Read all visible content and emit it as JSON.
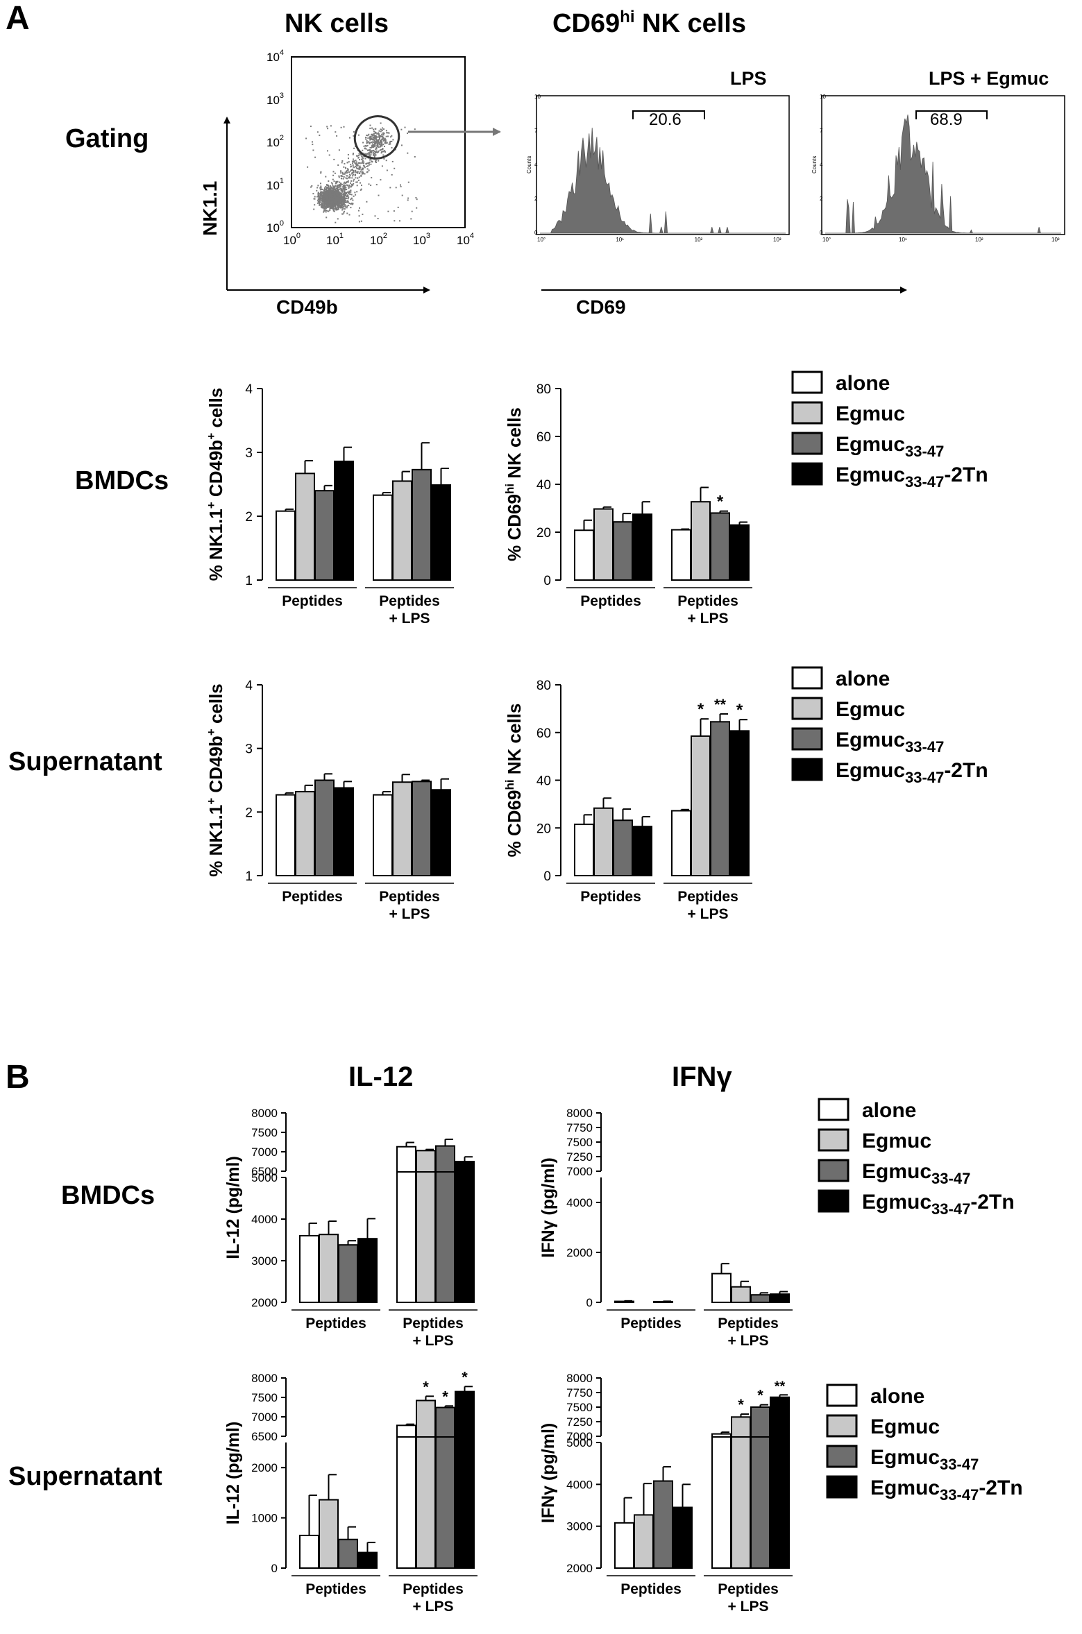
{
  "panel_a": {
    "letter": "A",
    "headers": {
      "nk": "NK cells",
      "cd69_main": "CD69",
      "cd69_sup": "hi",
      "cd69_rest": " NK cells"
    },
    "row_gating": "Gating",
    "row_bmdc": "BMDCs",
    "row_sup": "Supernatant",
    "scatter": {
      "ylabel": "NK1.1",
      "xlabel": "CD49b",
      "y_ticks": [
        "10",
        "10",
        "10",
        "10",
        "10"
      ],
      "y_exps": [
        "0",
        "1",
        "2",
        "3",
        "4"
      ],
      "x_ticks": [
        "10",
        "10",
        "10",
        "10",
        "10"
      ],
      "x_exps": [
        "0",
        "1",
        "2",
        "3",
        "4"
      ]
    },
    "hist_lps": {
      "title": "LPS",
      "gate_value": "20.6",
      "ylabel": "Counts"
    },
    "hist_egmuc": {
      "title": "LPS + Egmuc",
      "gate_value": "68.9",
      "ylabel": "Counts"
    },
    "hist_xlabel": "CD69",
    "hist_x_ticks": [
      "10°",
      "10¹",
      "10²",
      "10³"
    ],
    "hist_y_ticks": [
      "0",
      "2",
      "4",
      "7",
      "10"
    ]
  },
  "panel_b": {
    "letter": "B",
    "title_il12": "IL-12",
    "title_ifn": "IFNγ",
    "row_bmdc": "BMDCs",
    "row_sup": "Supernatant"
  },
  "legend": {
    "items": [
      {
        "label": "alone",
        "sub": "",
        "suffix": ""
      },
      {
        "label": "Egmuc",
        "sub": "",
        "suffix": ""
      },
      {
        "label": "Egmuc",
        "sub": "33-47",
        "suffix": ""
      },
      {
        "label": "Egmuc",
        "sub": "33-47",
        "suffix": "-2Tn"
      }
    ]
  },
  "colors": {
    "alone": "#ffffff",
    "egmuc": "#c8c8c8",
    "egmuc_33_47": "#6e6e6e",
    "egmuc_2tn": "#000000",
    "flow": "#7a7a7a"
  },
  "chart_data": [
    {
      "id": "a_bmdc_nk",
      "type": "bar",
      "ylabel_parts": [
        "% NK1.1",
        "+",
        " CD49b",
        "+",
        " cells"
      ],
      "ylim": [
        1,
        4
      ],
      "yticks": [
        "1",
        "2",
        "3",
        "4"
      ],
      "groups": [
        "Peptides",
        "Peptides\n+ LPS"
      ],
      "series": [
        {
          "name": "alone",
          "values": [
            2.08,
            2.33
          ],
          "err": [
            0.03,
            0.04
          ],
          "sig": [
            "",
            ""
          ]
        },
        {
          "name": "Egmuc",
          "values": [
            2.67,
            2.55
          ],
          "err": [
            0.2,
            0.15
          ],
          "sig": [
            "",
            ""
          ]
        },
        {
          "name": "Egmuc33-47",
          "values": [
            2.4,
            2.73
          ],
          "err": [
            0.08,
            0.42
          ],
          "sig": [
            "",
            ""
          ]
        },
        {
          "name": "Egmuc33-47-2Tn",
          "values": [
            2.86,
            2.49
          ],
          "err": [
            0.22,
            0.26
          ],
          "sig": [
            "",
            ""
          ]
        }
      ]
    },
    {
      "id": "a_bmdc_cd69",
      "type": "bar",
      "ylabel_parts": [
        "% CD69",
        "hi",
        " NK cells"
      ],
      "ylim": [
        0,
        80
      ],
      "yticks": [
        "0",
        "20",
        "40",
        "60",
        "80"
      ],
      "groups": [
        "Peptides",
        "Peptides\n+ LPS"
      ],
      "series": [
        {
          "name": "alone",
          "values": [
            20.8,
            21
          ],
          "err": [
            4.2,
            0.3
          ],
          "sig": [
            "",
            ""
          ]
        },
        {
          "name": "Egmuc",
          "values": [
            29.7,
            32.7
          ],
          "err": [
            0.8,
            6
          ],
          "sig": [
            "",
            ""
          ]
        },
        {
          "name": "Egmuc33-47",
          "values": [
            24.3,
            28
          ],
          "err": [
            3.5,
            0.8
          ],
          "sig": [
            "",
            "*"
          ]
        },
        {
          "name": "Egmuc33-47-2Tn",
          "values": [
            27.5,
            23
          ],
          "err": [
            5.2,
            1.2
          ],
          "sig": [
            "",
            ""
          ]
        }
      ]
    },
    {
      "id": "a_sup_nk",
      "type": "bar",
      "ylabel_parts": [
        "% NK1.1",
        "+",
        " CD49b",
        "+",
        " cells"
      ],
      "ylim": [
        1,
        4
      ],
      "yticks": [
        "1",
        "2",
        "3",
        "4"
      ],
      "groups": [
        "Peptides",
        "Peptides\n+ LPS"
      ],
      "series": [
        {
          "name": "alone",
          "values": [
            2.27,
            2.27
          ],
          "err": [
            0.03,
            0.05
          ],
          "sig": [
            "",
            ""
          ]
        },
        {
          "name": "Egmuc",
          "values": [
            2.32,
            2.47
          ],
          "err": [
            0.1,
            0.12
          ],
          "sig": [
            "",
            ""
          ]
        },
        {
          "name": "Egmuc33-47",
          "values": [
            2.5,
            2.48
          ],
          "err": [
            0.1,
            0.02
          ],
          "sig": [
            "",
            ""
          ]
        },
        {
          "name": "Egmuc33-47-2Tn",
          "values": [
            2.38,
            2.35
          ],
          "err": [
            0.1,
            0.17
          ],
          "sig": [
            "",
            ""
          ]
        }
      ]
    },
    {
      "id": "a_sup_cd69",
      "type": "bar",
      "ylabel_parts": [
        "% CD69",
        "hi",
        " NK cells"
      ],
      "ylim": [
        0,
        80
      ],
      "yticks": [
        "0",
        "20",
        "40",
        "60",
        "80"
      ],
      "groups": [
        "Peptides",
        "Peptides\n+ LPS"
      ],
      "series": [
        {
          "name": "alone",
          "values": [
            21.5,
            27.2
          ],
          "err": [
            4,
            0.5
          ],
          "sig": [
            "",
            ""
          ]
        },
        {
          "name": "Egmuc",
          "values": [
            28.3,
            58.5
          ],
          "err": [
            4.2,
            7.2
          ],
          "sig": [
            "",
            "*"
          ]
        },
        {
          "name": "Egmuc33-47",
          "values": [
            23.2,
            64.5
          ],
          "err": [
            4.7,
            3.3
          ],
          "sig": [
            "",
            "**"
          ]
        },
        {
          "name": "Egmuc33-47-2Tn",
          "values": [
            20.6,
            60.7
          ],
          "err": [
            4.1,
            4.7
          ],
          "sig": [
            "",
            "*"
          ]
        }
      ]
    },
    {
      "id": "b_bmdc_il12",
      "type": "bar",
      "broken": true,
      "ylabel": "IL-12 (pg/ml)",
      "lower_ylim": [
        2000,
        5000
      ],
      "lower_ticks": [
        "2000",
        "3000",
        "4000",
        "5000"
      ],
      "upper_ylim": [
        6500,
        8000
      ],
      "upper_ticks": [
        "6500",
        "7000",
        "7500",
        "8000"
      ],
      "groups": [
        "Peptides",
        "Peptides\n+ LPS"
      ],
      "series": [
        {
          "name": "alone",
          "values": [
            3600,
            7130
          ],
          "err": [
            300,
            110
          ],
          "sig": [
            "",
            ""
          ]
        },
        {
          "name": "Egmuc",
          "values": [
            3630,
            7030
          ],
          "err": [
            320,
            30
          ],
          "sig": [
            "",
            ""
          ]
        },
        {
          "name": "Egmuc33-47",
          "values": [
            3380,
            7150
          ],
          "err": [
            100,
            170
          ],
          "sig": [
            "",
            ""
          ]
        },
        {
          "name": "Egmuc33-47-2Tn",
          "values": [
            3530,
            6750
          ],
          "err": [
            480,
            120
          ],
          "sig": [
            "",
            ""
          ]
        }
      ]
    },
    {
      "id": "b_bmdc_ifn",
      "type": "bar",
      "broken": true,
      "ylabel": "IFNγ (pg/ml)",
      "lower_ylim": [
        0,
        5000
      ],
      "lower_ticks": [
        "0",
        "2000",
        "4000"
      ],
      "upper_ylim": [
        7000,
        8000
      ],
      "upper_ticks": [
        "7000",
        "7250",
        "7500",
        "7750",
        "8000"
      ],
      "groups": [
        "Peptides",
        "Peptides\n+ LPS"
      ],
      "series": [
        {
          "name": "alone",
          "values": [
            40,
            1150
          ],
          "err": [
            20,
            400
          ],
          "sig": [
            "",
            ""
          ]
        },
        {
          "name": "Egmuc",
          "values": [
            0,
            620
          ],
          "err": [
            0,
            220
          ],
          "sig": [
            "",
            ""
          ]
        },
        {
          "name": "Egmuc33-47",
          "values": [
            30,
            300
          ],
          "err": [
            15,
            80
          ],
          "sig": [
            "",
            ""
          ]
        },
        {
          "name": "Egmuc33-47-2Tn",
          "values": [
            0,
            330
          ],
          "err": [
            0,
            100
          ],
          "sig": [
            "",
            ""
          ]
        }
      ]
    },
    {
      "id": "b_sup_il12",
      "type": "bar",
      "broken": true,
      "ylabel": "IL-12 (pg/ml)",
      "lower_ylim": [
        0,
        2500
      ],
      "lower_ticks": [
        "0",
        "1000",
        "2000"
      ],
      "upper_ylim": [
        6500,
        8000
      ],
      "upper_ticks": [
        "6500",
        "7000",
        "7500",
        "8000"
      ],
      "groups": [
        "Peptides",
        "Peptides\n+ LPS"
      ],
      "series": [
        {
          "name": "alone",
          "values": [
            650,
            6780
          ],
          "err": [
            800,
            30
          ],
          "sig": [
            "",
            ""
          ]
        },
        {
          "name": "Egmuc",
          "values": [
            1360,
            7420
          ],
          "err": [
            500,
            110
          ],
          "sig": [
            "",
            "*"
          ]
        },
        {
          "name": "Egmuc33-47",
          "values": [
            570,
            7240
          ],
          "err": [
            250,
            40
          ],
          "sig": [
            "",
            "*"
          ]
        },
        {
          "name": "Egmuc33-47-2Tn",
          "values": [
            310,
            7650
          ],
          "err": [
            200,
            130
          ],
          "sig": [
            "",
            "*"
          ]
        }
      ]
    },
    {
      "id": "b_sup_ifn",
      "type": "bar",
      "broken": true,
      "ylabel": "IFNγ (pg/ml)",
      "lower_ylim": [
        2000,
        5000
      ],
      "lower_ticks": [
        "2000",
        "3000",
        "4000",
        "5000"
      ],
      "upper_ylim": [
        7000,
        8000
      ],
      "upper_ticks": [
        "7000",
        "7250",
        "7500",
        "7750",
        "8000"
      ],
      "groups": [
        "Peptides",
        "Peptides\n+ LPS"
      ],
      "series": [
        {
          "name": "alone",
          "values": [
            3080,
            7040
          ],
          "err": [
            600,
            30
          ],
          "sig": [
            "",
            ""
          ]
        },
        {
          "name": "Egmuc",
          "values": [
            3270,
            7330
          ],
          "err": [
            750,
            50
          ],
          "sig": [
            "",
            "*"
          ]
        },
        {
          "name": "Egmuc33-47",
          "values": [
            4080,
            7500
          ],
          "err": [
            340,
            40
          ],
          "sig": [
            "",
            "*"
          ]
        },
        {
          "name": "Egmuc33-47-2Tn",
          "values": [
            3450,
            7670
          ],
          "err": [
            550,
            40
          ],
          "sig": [
            "",
            "**"
          ]
        }
      ]
    }
  ]
}
